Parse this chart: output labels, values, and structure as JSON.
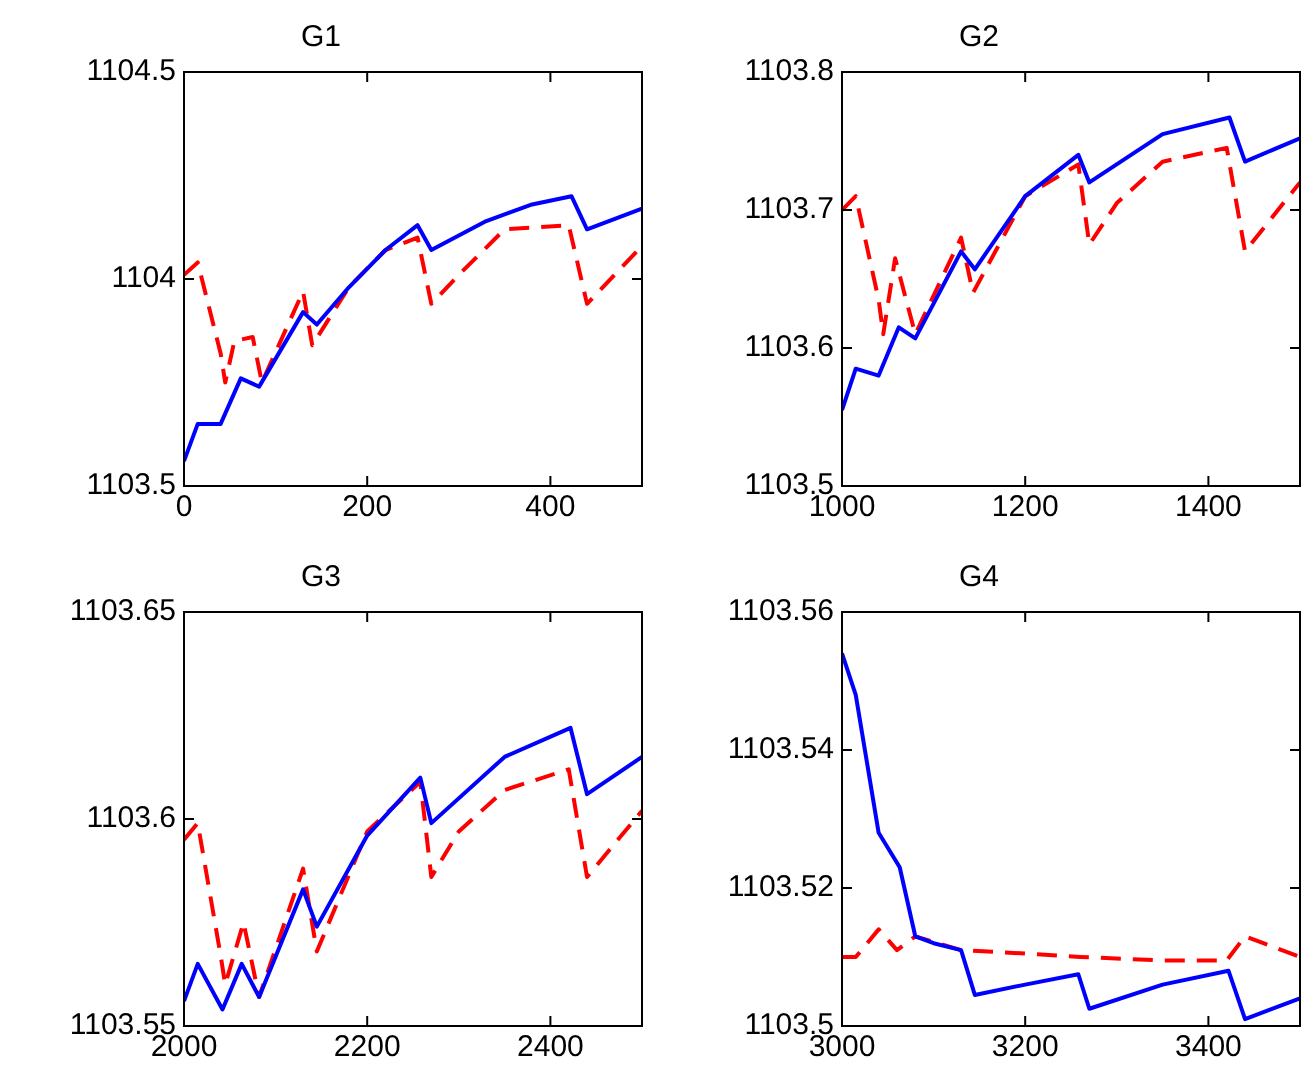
{
  "chart_data": [
    {
      "type": "line",
      "title": "G1",
      "xlim": [
        0,
        500
      ],
      "xticks": [
        0,
        200,
        400
      ],
      "ylim": [
        1103.5,
        1104.5
      ],
      "yticks": [
        1103.5,
        1104,
        1104.5
      ],
      "grid": false,
      "legend": false,
      "marker": "none",
      "series": [
        {
          "color": "#0000ff",
          "line_style": "solid",
          "x": [
            0,
            15,
            40,
            62,
            82,
            130,
            145,
            180,
            220,
            255,
            270,
            330,
            380,
            423,
            440,
            500
          ],
          "values": [
            1103.56,
            1103.65,
            1103.65,
            1103.76,
            1103.74,
            1103.92,
            1103.89,
            1103.98,
            1104.07,
            1104.13,
            1104.07,
            1104.14,
            1104.18,
            1104.2,
            1104.12,
            1104.17
          ]
        },
        {
          "color": "#ff0000",
          "line_style": "dashed",
          "x": [
            0,
            15,
            40,
            45,
            55,
            75,
            85,
            130,
            140,
            180,
            220,
            255,
            270,
            300,
            350,
            420,
            440,
            500
          ],
          "values": [
            1104.01,
            1104.04,
            1103.82,
            1103.75,
            1103.85,
            1103.86,
            1103.75,
            1103.97,
            1103.84,
            1103.98,
            1104.07,
            1104.1,
            1103.94,
            1104.01,
            1104.12,
            1104.13,
            1103.94,
            1104.08
          ]
        }
      ]
    },
    {
      "type": "line",
      "title": "G2",
      "xlim": [
        1000,
        1500
      ],
      "xticks": [
        1000,
        1200,
        1400
      ],
      "ylim": [
        1103.5,
        1103.8
      ],
      "yticks": [
        1103.5,
        1103.6,
        1103.7,
        1103.8
      ],
      "grid": false,
      "legend": false,
      "marker": "none",
      "series": [
        {
          "color": "#0000ff",
          "line_style": "solid",
          "x": [
            1000,
            1015,
            1040,
            1062,
            1080,
            1130,
            1145,
            1200,
            1258,
            1270,
            1350,
            1423,
            1440,
            1500
          ],
          "values": [
            1103.555,
            1103.585,
            1103.58,
            1103.615,
            1103.607,
            1103.67,
            1103.657,
            1103.71,
            1103.74,
            1103.72,
            1103.755,
            1103.767,
            1103.735,
            1103.752
          ]
        },
        {
          "color": "#ff0000",
          "line_style": "dashed",
          "x": [
            1000,
            1015,
            1040,
            1045,
            1058,
            1080,
            1130,
            1143,
            1200,
            1258,
            1270,
            1300,
            1350,
            1420,
            1440,
            1500
          ],
          "values": [
            1103.7,
            1103.71,
            1103.635,
            1103.61,
            1103.665,
            1103.61,
            1103.68,
            1103.64,
            1103.71,
            1103.733,
            1103.675,
            1103.705,
            1103.735,
            1103.745,
            1103.67,
            1103.72
          ]
        }
      ]
    },
    {
      "type": "line",
      "title": "G3",
      "xlim": [
        2000,
        2500
      ],
      "xticks": [
        2000,
        2200,
        2400
      ],
      "ylim": [
        1103.55,
        1103.65
      ],
      "yticks": [
        1103.55,
        1103.6,
        1103.65
      ],
      "grid": false,
      "legend": false,
      "marker": "none",
      "series": [
        {
          "color": "#0000ff",
          "line_style": "solid",
          "x": [
            2000,
            2015,
            2042,
            2063,
            2082,
            2130,
            2145,
            2200,
            2258,
            2270,
            2350,
            2422,
            2440,
            2500
          ],
          "values": [
            1103.556,
            1103.565,
            1103.554,
            1103.565,
            1103.557,
            1103.583,
            1103.574,
            1103.596,
            1103.61,
            1103.599,
            1103.615,
            1103.622,
            1103.606,
            1103.615
          ]
        },
        {
          "color": "#ff0000",
          "line_style": "dashed",
          "x": [
            2000,
            2015,
            2040,
            2045,
            2065,
            2082,
            2130,
            2145,
            2200,
            2258,
            2270,
            2300,
            2350,
            2420,
            2440,
            2500
          ],
          "values": [
            1103.595,
            1103.599,
            1103.567,
            1103.56,
            1103.575,
            1103.557,
            1103.588,
            1103.568,
            1103.597,
            1103.609,
            1103.586,
            1103.597,
            1103.607,
            1103.612,
            1103.586,
            1103.602
          ]
        }
      ]
    },
    {
      "type": "line",
      "title": "G4",
      "xlim": [
        3000,
        3500
      ],
      "xticks": [
        3000,
        3200,
        3400
      ],
      "ylim": [
        1103.5,
        1103.56
      ],
      "yticks": [
        1103.5,
        1103.52,
        1103.54,
        1103.56
      ],
      "grid": false,
      "legend": false,
      "marker": "none",
      "series": [
        {
          "color": "#0000ff",
          "line_style": "solid",
          "x": [
            3000,
            3015,
            3040,
            3063,
            3080,
            3100,
            3130,
            3145,
            3200,
            3258,
            3270,
            3350,
            3422,
            3440,
            3500
          ],
          "values": [
            1103.554,
            1103.548,
            1103.528,
            1103.523,
            1103.513,
            1103.512,
            1103.511,
            1103.5045,
            1103.506,
            1103.5075,
            1103.5025,
            1103.506,
            1103.508,
            1103.501,
            1103.504
          ]
        },
        {
          "color": "#ff0000",
          "line_style": "dashed",
          "x": [
            3000,
            3015,
            3040,
            3060,
            3080,
            3130,
            3200,
            3260,
            3350,
            3420,
            3440,
            3500
          ],
          "values": [
            1103.51,
            1103.51,
            1103.514,
            1103.511,
            1103.513,
            1103.511,
            1103.5105,
            1103.51,
            1103.5095,
            1103.5095,
            1103.513,
            1103.51
          ]
        }
      ]
    }
  ]
}
